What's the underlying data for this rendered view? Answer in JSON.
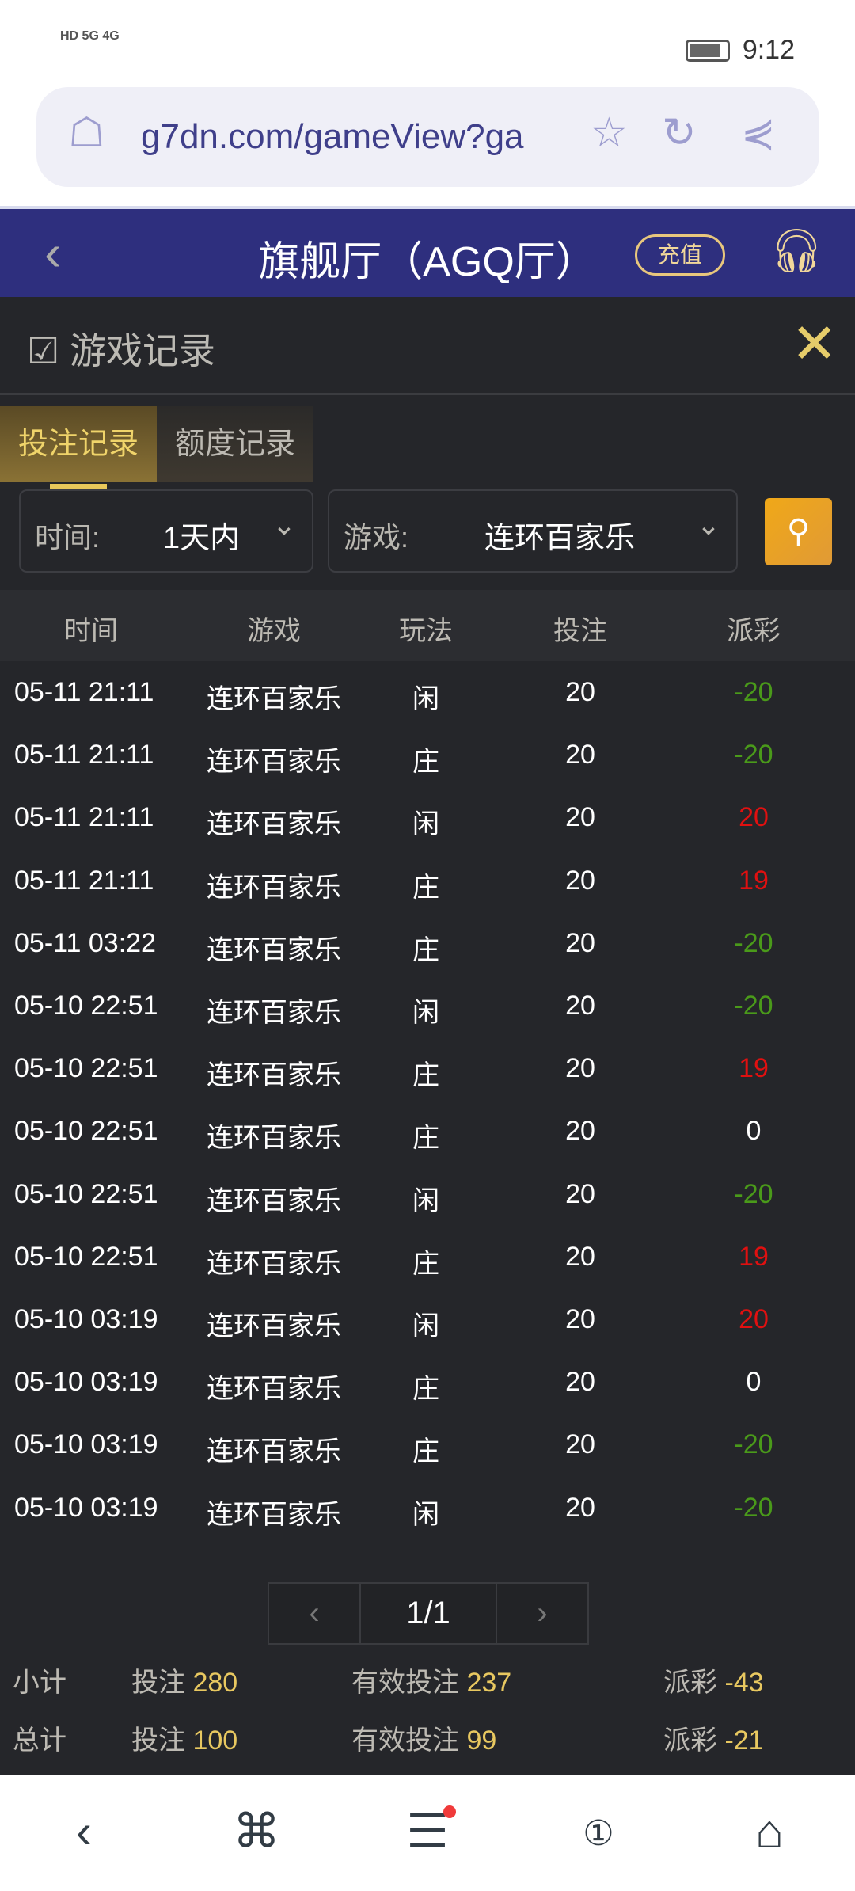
{
  "status_bar": {
    "left": "HD 5G 4G",
    "time": "9:12"
  },
  "browser": {
    "url": "g7dn.com/gameView?ga"
  },
  "header": {
    "title": "旗舰厅（AGQ厅）",
    "recharge": "充值"
  },
  "panel": {
    "title": "游戏记录",
    "tabs": [
      {
        "label": "投注记录",
        "active": true
      },
      {
        "label": "额度记录",
        "active": false
      }
    ],
    "filters": {
      "time_label": "时间:",
      "time_value": "1天内",
      "game_label": "游戏:",
      "game_value": "连环百家乐"
    },
    "columns": [
      "时间",
      "游戏",
      "玩法",
      "投注",
      "派彩"
    ],
    "rows": [
      [
        "05-11 21:11",
        "连环百家乐",
        "闲",
        "20",
        "-20"
      ],
      [
        "05-11 21:11",
        "连环百家乐",
        "庄",
        "20",
        "-20"
      ],
      [
        "05-11 21:11",
        "连环百家乐",
        "闲",
        "20",
        "20"
      ],
      [
        "05-11 21:11",
        "连环百家乐",
        "庄",
        "20",
        "19"
      ],
      [
        "05-11 03:22",
        "连环百家乐",
        "庄",
        "20",
        "-20"
      ],
      [
        "05-10 22:51",
        "连环百家乐",
        "闲",
        "20",
        "-20"
      ],
      [
        "05-10 22:51",
        "连环百家乐",
        "庄",
        "20",
        "19"
      ],
      [
        "05-10 22:51",
        "连环百家乐",
        "庄",
        "20",
        "0"
      ],
      [
        "05-10 22:51",
        "连环百家乐",
        "闲",
        "20",
        "-20"
      ],
      [
        "05-10 22:51",
        "连环百家乐",
        "庄",
        "20",
        "19"
      ],
      [
        "05-10 03:19",
        "连环百家乐",
        "闲",
        "20",
        "20"
      ],
      [
        "05-10 03:19",
        "连环百家乐",
        "庄",
        "20",
        "0"
      ],
      [
        "05-10 03:19",
        "连环百家乐",
        "庄",
        "20",
        "-20"
      ],
      [
        "05-10 03:19",
        "连环百家乐",
        "闲",
        "20",
        "-20"
      ]
    ],
    "pager": {
      "page": "1/1"
    },
    "subtotal": {
      "label": "小计",
      "bet_label": "投注",
      "bet": "280",
      "valid_label": "有效投注",
      "valid": "237",
      "payout_label": "派彩",
      "payout": "-43"
    },
    "total": {
      "label": "总计",
      "bet_label": "投注",
      "bet": "100",
      "valid_label": "有效投注",
      "valid": "99",
      "payout_label": "派彩",
      "payout": "-21"
    }
  },
  "colors": {
    "header": "#2e2f7e",
    "panel": "#25262a",
    "gold": "#e8c860",
    "win": "#e01010",
    "loss": "#4a9a1a"
  }
}
